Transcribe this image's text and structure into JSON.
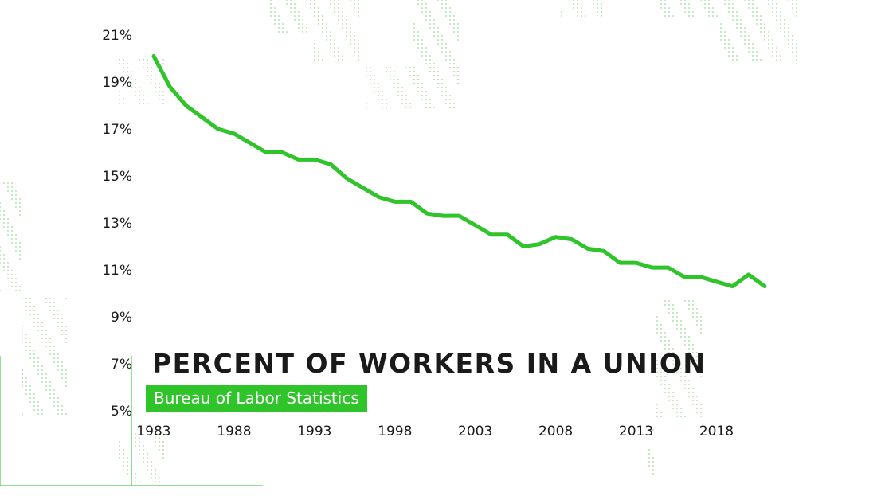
{
  "colors": {
    "line": "#2ec42a",
    "text": "#1a1a1a",
    "accent": "#2ec42a",
    "background": "#ffffff",
    "dots": "#9ed89a"
  },
  "title": "PERCENT OF WORKERS IN A UNION",
  "source": "Bureau of Labor Statistics",
  "chart_data": {
    "type": "line",
    "title": "PERCENT OF WORKERS IN A UNION",
    "xlabel": "",
    "ylabel": "",
    "xlim": [
      1983,
      2021
    ],
    "ylim": [
      5,
      21
    ],
    "x_ticks": [
      1983,
      1988,
      1993,
      1998,
      2003,
      2008,
      2013,
      2018
    ],
    "x_tick_labels": [
      "1983",
      "1988",
      "1993",
      "1998",
      "2003",
      "2008",
      "2013",
      "2018"
    ],
    "y_ticks": [
      5,
      7,
      9,
      11,
      13,
      15,
      17,
      19,
      21
    ],
    "y_tick_labels": [
      "5%",
      "7%",
      "9%",
      "11%",
      "13%",
      "15%",
      "17%",
      "19%",
      "21%"
    ],
    "grid": false,
    "legend": "none",
    "series": [
      {
        "x": [
          1983,
          1984,
          1985,
          1986,
          1987,
          1988,
          1989,
          1990,
          1991,
          1992,
          1993,
          1994,
          1995,
          1996,
          1997,
          1998,
          1999,
          2000,
          2001,
          2002,
          2003,
          2004,
          2005,
          2006,
          2007,
          2008,
          2009,
          2010,
          2011,
          2012,
          2013,
          2014,
          2015,
          2016,
          2017,
          2018,
          2019,
          2020,
          2021
        ],
        "values": [
          20.1,
          18.8,
          18.0,
          17.5,
          17.0,
          16.8,
          16.4,
          16.0,
          16.0,
          15.7,
          15.7,
          15.5,
          14.9,
          14.5,
          14.1,
          13.9,
          13.9,
          13.4,
          13.3,
          13.3,
          12.9,
          12.5,
          12.5,
          12.0,
          12.1,
          12.4,
          12.3,
          11.9,
          11.8,
          11.3,
          11.3,
          11.1,
          11.1,
          10.7,
          10.7,
          10.5,
          10.3,
          10.8,
          10.3
        ]
      }
    ]
  }
}
